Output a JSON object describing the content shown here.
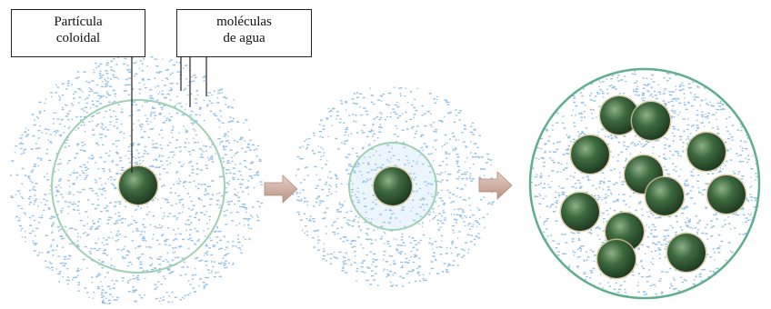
{
  "labels": {
    "particle_line1": "Partícula",
    "particle_line2": "coloidal",
    "water_line1": "moléculas",
    "water_line2": "de agua"
  },
  "colors": {
    "water_dots": "#7fb6e6",
    "shell_ring": "#9fd0b2",
    "particle_fill": "#3e6a3f",
    "particle_dark": "#1f3d22",
    "particle_light": "#8fb08a",
    "arrow": "#c9a79a",
    "leader_line": "#222222",
    "box_border": "#222222"
  },
  "stages": [
    {
      "name": "dispersed",
      "particles": 1
    },
    {
      "name": "compressed",
      "particles": 1
    },
    {
      "name": "aggregate",
      "particles": 12
    }
  ]
}
